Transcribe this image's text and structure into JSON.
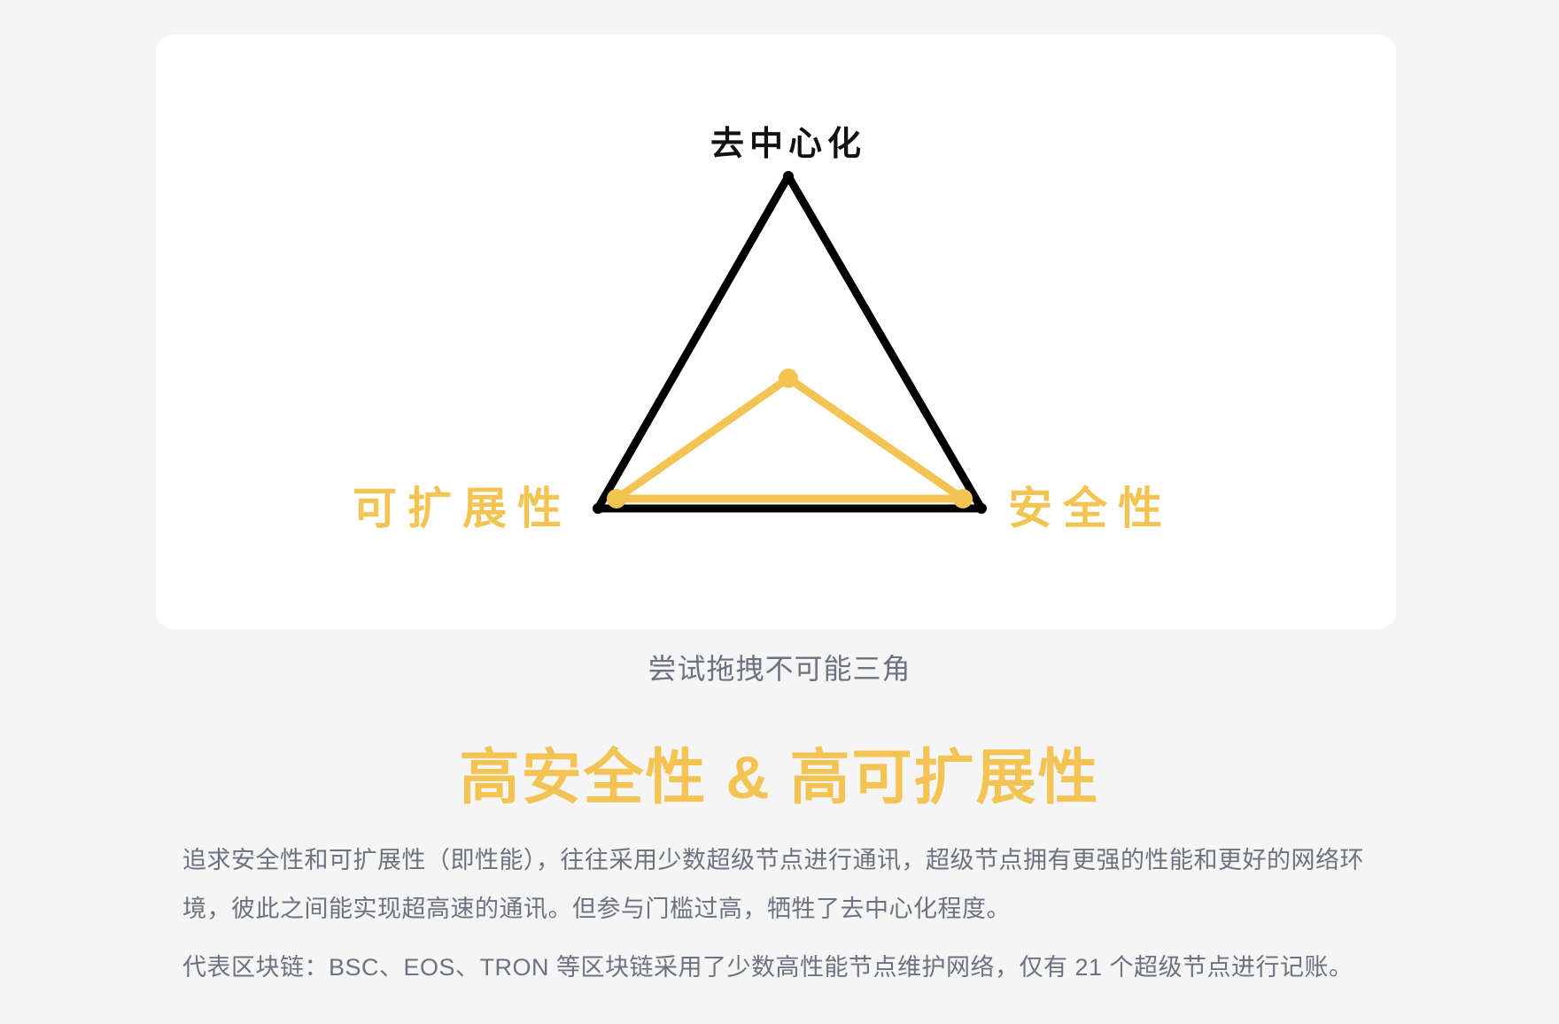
{
  "diagram": {
    "vertex_top_label": "去中心化",
    "vertex_left_label": "可扩展性",
    "vertex_right_label": "安全性",
    "outer_color": "#000000",
    "inner_color": "#f3c453"
  },
  "caption": "尝试拖拽不可能三角",
  "heading": "高安全性 & 高可扩展性",
  "paragraphs": [
    "追求安全性和可扩展性（即性能），往往采用少数超级节点进行通讯，超级节点拥有更强的性能和更好的网络环境，彼此之间能实现超高速的通讯。但参与门槛过高，牺牲了去中心化程度。",
    "代表区块链：BSC、EOS、TRON 等区块链采用了少数高性能节点维护网络，仅有 21 个超级节点进行记账。"
  ]
}
